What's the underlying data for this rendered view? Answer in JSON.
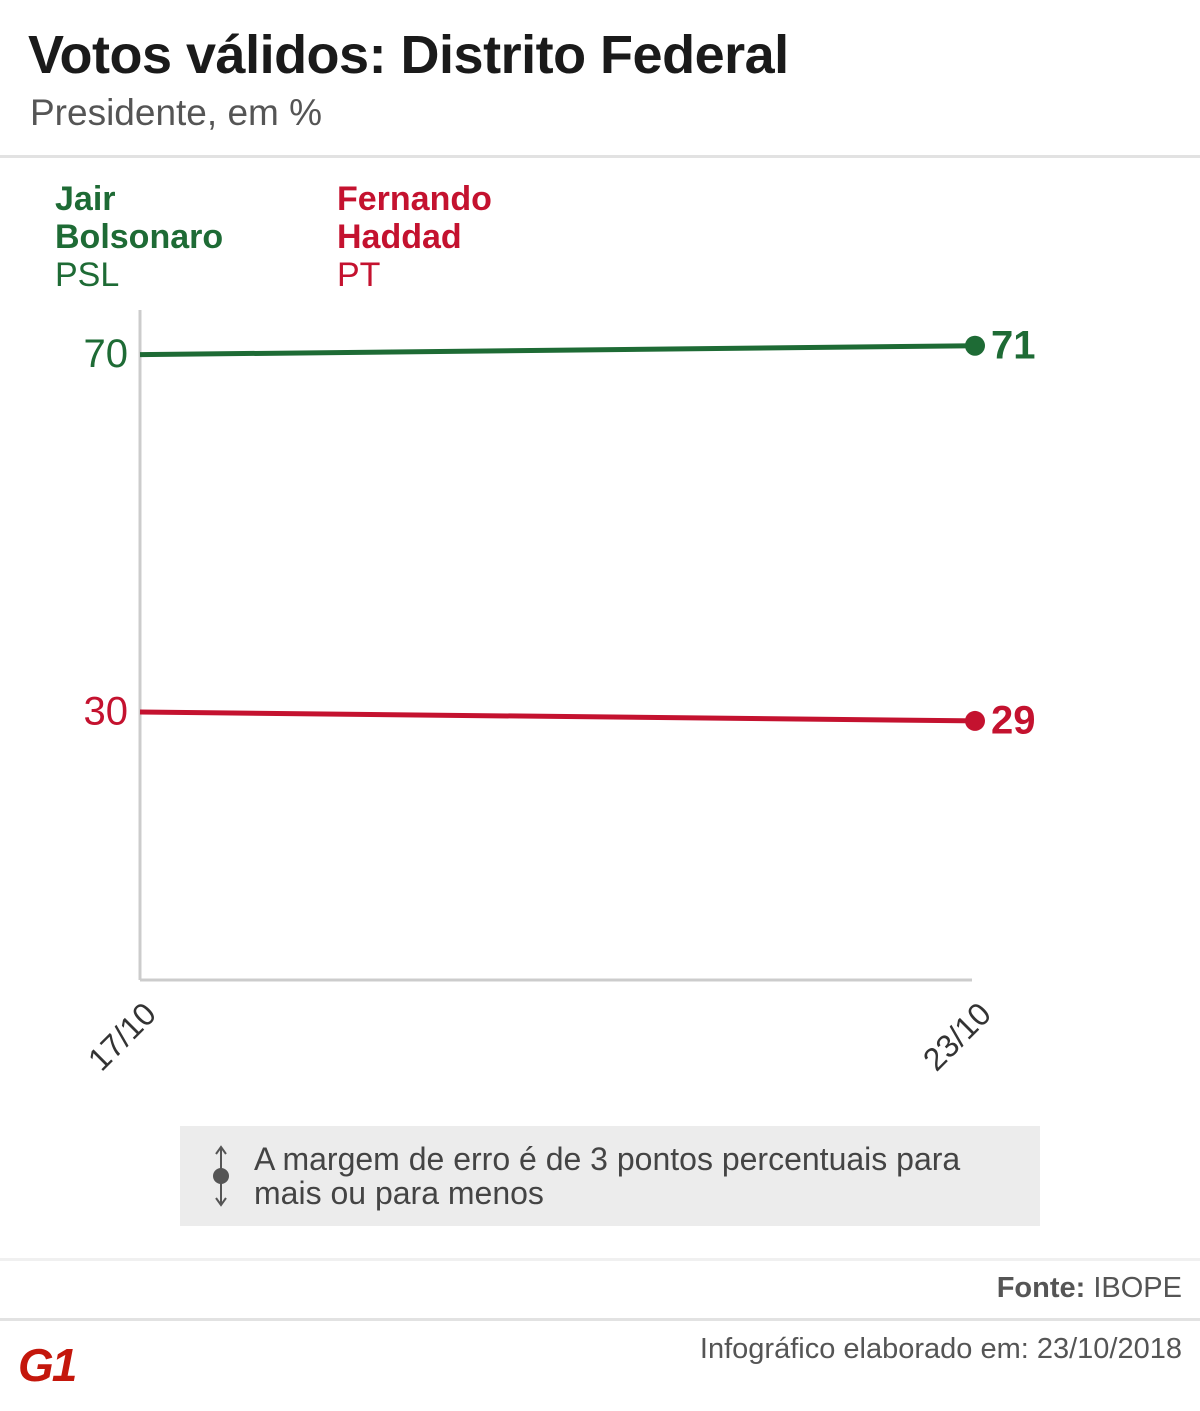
{
  "chart_data": {
    "type": "line",
    "title": "Votos válidos: Distrito Federal",
    "subtitle": "Presidente, em %",
    "categories": [
      "17/10",
      "23/10"
    ],
    "series": [
      {
        "name": "Jair Bolsonaro",
        "party": "PSL",
        "color": "#1e6b35",
        "values": [
          70,
          71
        ]
      },
      {
        "name": "Fernando Haddad",
        "party": "PT",
        "color": "#c4122f",
        "values": [
          30,
          29
        ]
      }
    ],
    "ylim": [
      0,
      75
    ],
    "note": "A margem de erro é de 3 pontos percentuais para mais ou para menos",
    "source_label": "Fonte:",
    "source": "IBOPE",
    "footer": "Infográfico elaborado em: 23/10/2018",
    "logo": "G1"
  }
}
